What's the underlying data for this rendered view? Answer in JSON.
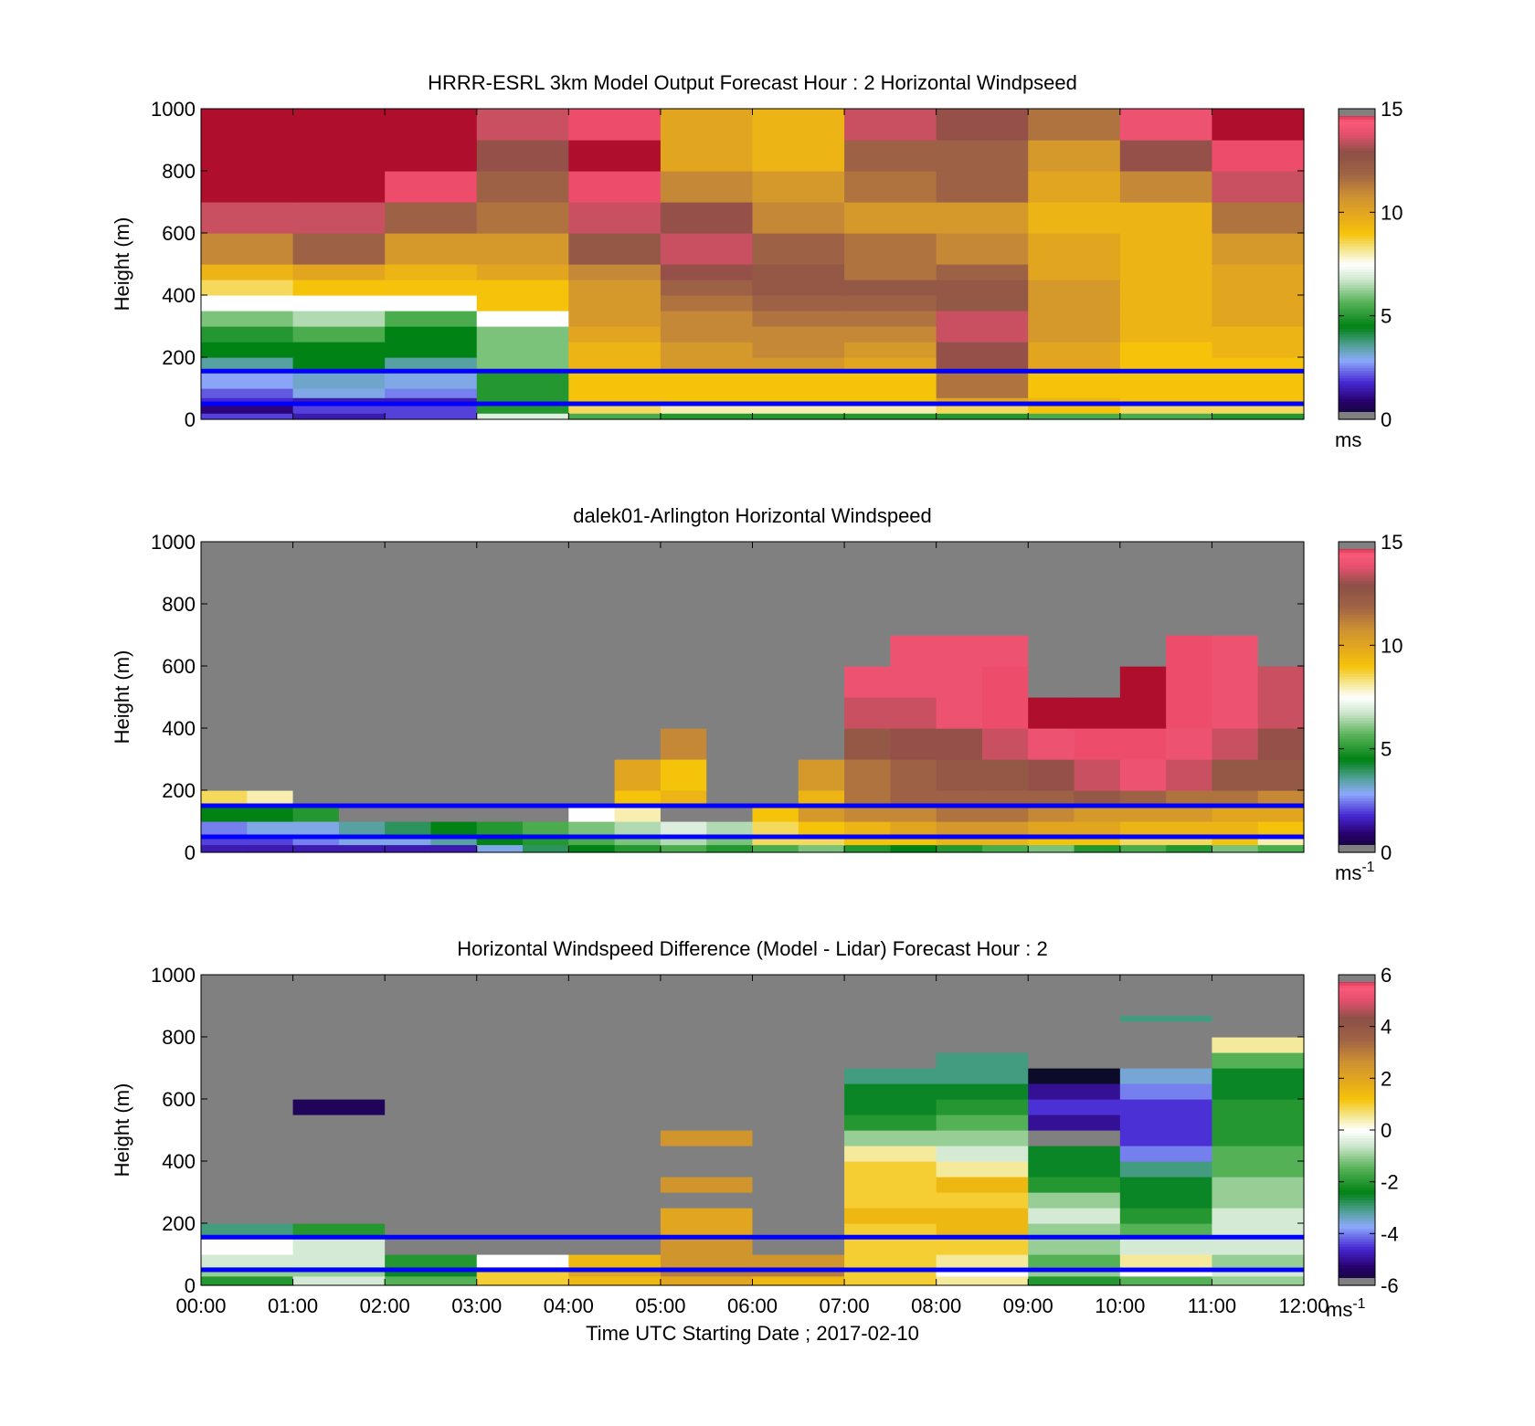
{
  "chart_data": [
    {
      "type": "heatmap",
      "title": "HRRR-ESRL 3km Model Output   Forecast Hour : 2 Horizontal Windpseed",
      "xlabel": "",
      "ylabel": "Height (m)",
      "ylim": [
        0,
        1000
      ],
      "yticks": [
        "0",
        "200",
        "400",
        "600",
        "800",
        "1000"
      ],
      "x_hours": [
        0,
        1,
        2,
        3,
        4,
        5,
        6,
        7,
        8,
        9,
        10,
        11,
        12
      ],
      "xticks": [],
      "colorbar": {
        "min": 0,
        "max": 15,
        "ticks": [
          "0",
          "5",
          "10",
          "15"
        ],
        "unit": "ms",
        "unit_sup": ""
      },
      "heights": [
        0,
        20,
        50,
        70,
        100,
        150,
        200,
        250,
        300,
        350,
        400,
        450,
        500,
        600,
        700,
        800,
        900,
        1000
      ],
      "values": [
        [
          2.0,
          1.5,
          2.0,
          7.0,
          5.5,
          5.0,
          5.0,
          5.0,
          5.0,
          5.5,
          5.5,
          5.0
        ],
        [
          1.0,
          2.0,
          2.0,
          5.0,
          8.5,
          8.0,
          8.0,
          8.0,
          8.5,
          9.0,
          8.5,
          8.5
        ],
        [
          1.8,
          1.5,
          1.5,
          5.0,
          9.0,
          9.0,
          9.0,
          9.0,
          10.0,
          9.5,
          9.0,
          9.0
        ],
        [
          2.2,
          3.0,
          2.5,
          5.0,
          9.0,
          9.0,
          9.0,
          9.0,
          11.5,
          9.0,
          9.0,
          9.0
        ],
        [
          2.8,
          3.2,
          3.0,
          5.0,
          9.0,
          9.0,
          9.0,
          9.0,
          11.5,
          9.0,
          9.0,
          9.0
        ],
        [
          3.5,
          4.5,
          3.5,
          6.0,
          9.5,
          10.5,
          10.5,
          10.0,
          13.0,
          10.0,
          9.0,
          9.0
        ],
        [
          4.5,
          4.5,
          4.5,
          6.0,
          9.5,
          10.5,
          11.0,
          10.5,
          13.0,
          10.0,
          9.0,
          9.5
        ],
        [
          5.0,
          5.5,
          4.5,
          6.0,
          10.0,
          11.0,
          11.0,
          11.0,
          13.5,
          10.5,
          9.5,
          9.5
        ],
        [
          6.0,
          6.5,
          5.5,
          7.5,
          10.5,
          11.0,
          11.5,
          11.5,
          13.5,
          10.5,
          9.5,
          10.0
        ],
        [
          7.5,
          7.5,
          7.5,
          9.0,
          10.5,
          11.5,
          12.0,
          12.0,
          12.5,
          10.5,
          9.5,
          10.0
        ],
        [
          8.5,
          9.0,
          9.0,
          9.0,
          10.5,
          12.0,
          12.5,
          12.5,
          12.5,
          10.5,
          9.5,
          10.0
        ],
        [
          9.5,
          10.0,
          9.5,
          10.0,
          11.0,
          13.0,
          12.5,
          11.5,
          12.0,
          10.0,
          9.5,
          10.0
        ],
        [
          11.0,
          12.0,
          10.5,
          10.5,
          12.5,
          13.5,
          12.0,
          11.5,
          11.0,
          10.0,
          9.5,
          10.5
        ],
        [
          13.5,
          13.5,
          12.0,
          11.5,
          13.5,
          13.0,
          11.0,
          10.5,
          10.5,
          9.5,
          9.5,
          11.5
        ],
        [
          15.0,
          15.0,
          14.5,
          12.0,
          14.5,
          11.0,
          10.5,
          11.5,
          12.0,
          10.0,
          11.0,
          13.5
        ],
        [
          15.0,
          15.0,
          15.0,
          13.0,
          15.0,
          10.0,
          9.5,
          12.0,
          12.0,
          10.5,
          13.0,
          14.5
        ],
        [
          15.0,
          15.0,
          15.0,
          13.5,
          14.5,
          10.0,
          9.5,
          13.5,
          13.0,
          11.5,
          14.0,
          15.0
        ]
      ],
      "lines": [
        50,
        155
      ],
      "line_color": "#0000ff"
    },
    {
      "type": "heatmap",
      "title": "dalek01-Arlington  Horizontal Windspeed",
      "xlabel": "",
      "ylabel": "Height (m)",
      "ylim": [
        0,
        1000
      ],
      "yticks": [
        "0",
        "200",
        "400",
        "600",
        "800",
        "1000"
      ],
      "x_hours": [
        0,
        0.5,
        1,
        1.5,
        2,
        2.5,
        3,
        3.5,
        4,
        4.5,
        5,
        5.5,
        6,
        6.5,
        7,
        7.5,
        8,
        8.5,
        9,
        9.5,
        10,
        10.5,
        11,
        11.5,
        12
      ],
      "xticks": [],
      "colorbar": {
        "min": 0,
        "max": 15,
        "ticks": [
          "0",
          "5",
          "10",
          "15"
        ],
        "unit": "ms",
        "unit_sup": "-1"
      },
      "heights": [
        0,
        25,
        50,
        100,
        150,
        200,
        300,
        400,
        500,
        600,
        700,
        800,
        1000
      ],
      "values": [
        [
          1.5,
          1.5,
          1.5,
          1.5,
          1.5,
          1.5,
          3.0,
          4.0,
          4.5,
          5.0,
          5.5,
          5.0,
          5.5,
          6.0,
          5.0,
          4.5,
          5.0,
          5.5,
          6.0,
          5.0,
          5.5,
          5.0,
          6.0,
          5.5
        ],
        [
          2.0,
          2.0,
          2.5,
          3.0,
          3.0,
          3.5,
          4.5,
          5.0,
          5.5,
          6.0,
          6.5,
          6.0,
          8.5,
          8.5,
          9.0,
          9.0,
          9.5,
          9.5,
          9.0,
          9.0,
          8.5,
          8.5,
          9.0,
          8.0
        ],
        [
          2.5,
          3.0,
          3.0,
          3.5,
          4.0,
          4.5,
          5.0,
          5.5,
          6.0,
          6.5,
          7.0,
          6.5,
          8.5,
          9.0,
          9.5,
          10.0,
          10.5,
          10.5,
          10.0,
          10.0,
          9.5,
          9.5,
          9.5,
          9.0
        ],
        [
          4.5,
          4.5,
          5.0,
          15.5,
          15.5,
          15.5,
          15.5,
          15.5,
          7.5,
          8.0,
          15.5,
          15.5,
          9.0,
          10.5,
          11.0,
          11.0,
          11.5,
          11.5,
          11.0,
          10.5,
          10.5,
          10.5,
          10.0,
          10.0
        ],
        [
          8.5,
          8.0,
          15.5,
          15.5,
          15.5,
          15.5,
          15.5,
          15.5,
          15.5,
          9.0,
          9.5,
          15.5,
          15.5,
          9.5,
          11.5,
          12.0,
          12.0,
          12.0,
          12.0,
          12.5,
          12.0,
          11.5,
          11.5,
          11.0
        ],
        [
          16.5,
          16.5,
          16.5,
          16.5,
          16.5,
          16.5,
          16.5,
          16.5,
          16.5,
          10.0,
          9.0,
          16.5,
          16.5,
          10.5,
          11.5,
          12.0,
          12.5,
          12.5,
          13.0,
          13.5,
          14.0,
          13.5,
          12.5,
          12.5
        ],
        [
          16.5,
          16.5,
          16.5,
          16.5,
          16.5,
          16.5,
          16.5,
          16.5,
          16.5,
          16.5,
          11.0,
          16.5,
          16.5,
          16.5,
          12.5,
          13.0,
          13.0,
          13.5,
          14.0,
          14.5,
          14.5,
          14.0,
          13.5,
          13.0
        ],
        [
          16.5,
          16.5,
          16.5,
          16.5,
          16.5,
          16.5,
          16.5,
          16.5,
          16.5,
          16.5,
          16.5,
          16.5,
          16.5,
          16.5,
          13.5,
          13.5,
          14.0,
          14.5,
          15.0,
          15.0,
          15.0,
          14.5,
          14.0,
          13.5
        ],
        [
          16.5,
          16.5,
          16.5,
          16.5,
          16.5,
          16.5,
          16.5,
          16.5,
          16.5,
          16.5,
          16.5,
          16.5,
          16.5,
          16.5,
          14.0,
          14.0,
          14.0,
          14.5,
          16.5,
          16.5,
          15.0,
          14.5,
          14.0,
          13.5
        ],
        [
          16.5,
          16.5,
          16.5,
          16.5,
          16.5,
          16.5,
          16.5,
          16.5,
          16.5,
          16.5,
          16.5,
          16.5,
          16.5,
          16.5,
          16.5,
          14.0,
          14.0,
          14.0,
          16.5,
          16.5,
          16.5,
          14.5,
          14.0,
          16.5
        ],
        [
          16.5,
          16.5,
          16.5,
          16.5,
          16.5,
          16.5,
          16.5,
          16.5,
          16.5,
          16.5,
          16.5,
          16.5,
          16.5,
          16.5,
          16.5,
          16.5,
          16.5,
          16.5,
          16.5,
          16.5,
          16.5,
          16.5,
          16.5,
          16.5
        ],
        [
          16.5,
          16.5,
          16.5,
          16.5,
          16.5,
          16.5,
          16.5,
          16.5,
          16.5,
          16.5,
          16.5,
          16.5,
          16.5,
          16.5,
          16.5,
          16.5,
          16.5,
          16.5,
          16.5,
          16.5,
          16.5,
          16.5,
          16.5,
          16.5
        ]
      ],
      "lines": [
        50,
        150
      ],
      "line_color": "#0000ff"
    },
    {
      "type": "heatmap",
      "title": "Horizontal Windspeed Difference (Model - Lidar) Forecast Hour : 2",
      "xlabel": "Time UTC  Starting Date ; 2017-02-10",
      "ylabel": "Height (m)",
      "ylim": [
        0,
        1000
      ],
      "yticks": [
        "0",
        "200",
        "400",
        "600",
        "800",
        "1000"
      ],
      "x_hours": [
        0,
        1,
        2,
        3,
        4,
        5,
        6,
        7,
        8,
        9,
        10,
        11,
        12
      ],
      "xticks": [
        "00:00",
        "01:00",
        "02:00",
        "03:00",
        "04:00",
        "05:00",
        "06:00",
        "07:00",
        "08:00",
        "09:00",
        "10:00",
        "11:00",
        "12:00"
      ],
      "colorbar": {
        "min": -6,
        "max": 6,
        "ticks": [
          "-6",
          "-4",
          "-2",
          "0",
          "2",
          "4",
          "6"
        ],
        "unit": "ms",
        "unit_sup": "-1"
      },
      "heights": [
        0,
        30,
        60,
        100,
        150,
        200,
        250,
        300,
        350,
        400,
        450,
        500,
        550,
        600,
        650,
        700,
        750,
        800,
        850,
        870,
        1000
      ],
      "values": [
        [
          -2.0,
          -0.5,
          -1.5,
          1.0,
          1.5,
          2.0,
          1.5,
          1.0,
          0.5,
          -2.0,
          -1.5,
          -1.0
        ],
        [
          -1.0,
          -1.0,
          -2.5,
          1.0,
          2.0,
          3.0,
          3.0,
          1.0,
          0.0,
          -1.0,
          0.0,
          -0.5
        ],
        [
          -0.5,
          -0.5,
          -2.0,
          0.0,
          1.5,
          2.5,
          2.5,
          1.0,
          0.5,
          -1.5,
          0.5,
          -1.0
        ],
        [
          0.0,
          -0.5,
          6.5,
          6.5,
          6.5,
          2.5,
          6.5,
          1.0,
          1.0,
          -1.0,
          -0.5,
          -0.5
        ],
        [
          -3.0,
          -2.0,
          6.5,
          6.5,
          6.5,
          2.0,
          6.5,
          1.0,
          1.5,
          -1.0,
          -1.5,
          -0.5
        ],
        [
          6.5,
          6.5,
          6.5,
          6.5,
          6.5,
          2.0,
          6.5,
          1.5,
          1.5,
          -0.5,
          -2.0,
          -0.5
        ],
        [
          6.5,
          6.5,
          6.5,
          6.5,
          6.5,
          6.5,
          6.5,
          1.0,
          1.0,
          -1.0,
          -2.5,
          -1.0
        ],
        [
          6.5,
          6.5,
          6.5,
          6.5,
          6.5,
          2.5,
          6.5,
          1.0,
          1.5,
          -2.0,
          -2.5,
          -1.0
        ],
        [
          6.5,
          6.5,
          6.5,
          6.5,
          6.5,
          6.5,
          6.5,
          1.0,
          0.5,
          -2.5,
          -3.0,
          -1.5
        ],
        [
          6.5,
          6.5,
          6.5,
          6.5,
          6.5,
          6.5,
          6.5,
          0.5,
          -0.5,
          -2.5,
          -4.0,
          -1.5
        ],
        [
          6.5,
          6.5,
          6.5,
          6.5,
          6.5,
          2.5,
          6.5,
          -1.0,
          -1.0,
          6.5,
          -4.5,
          -2.0
        ],
        [
          6.5,
          6.5,
          6.5,
          6.5,
          6.5,
          6.5,
          6.5,
          -2.0,
          -1.5,
          -5.0,
          -4.5,
          -2.0
        ],
        [
          6.5,
          -5.5,
          6.5,
          6.5,
          6.5,
          6.5,
          6.5,
          -2.5,
          -2.0,
          -4.5,
          -4.5,
          -2.0
        ],
        [
          6.5,
          6.5,
          6.5,
          6.5,
          6.5,
          6.5,
          6.5,
          -2.5,
          -2.5,
          -5.0,
          -4.0,
          -2.5
        ],
        [
          6.5,
          6.5,
          6.5,
          6.5,
          6.5,
          6.5,
          6.5,
          -3.0,
          -3.0,
          -6.0,
          -3.5,
          -2.5
        ],
        [
          6.5,
          6.5,
          6.5,
          6.5,
          6.5,
          6.5,
          6.5,
          6.5,
          -3.0,
          6.5,
          6.5,
          -1.5
        ],
        [
          6.5,
          6.5,
          6.5,
          6.5,
          6.5,
          6.5,
          6.5,
          6.5,
          6.5,
          6.5,
          6.5,
          0.5
        ],
        [
          6.5,
          6.5,
          6.5,
          6.5,
          6.5,
          6.5,
          6.5,
          6.5,
          6.5,
          6.5,
          6.5,
          6.5
        ],
        [
          6.5,
          6.5,
          6.5,
          6.5,
          6.5,
          6.5,
          6.5,
          6.5,
          6.5,
          6.5,
          -3.0,
          6.5
        ],
        [
          6.5,
          6.5,
          6.5,
          6.5,
          6.5,
          6.5,
          6.5,
          6.5,
          6.5,
          6.5,
          6.5,
          6.5
        ]
      ],
      "lines": [
        50,
        155
      ],
      "line_color": "#0000ff"
    }
  ]
}
